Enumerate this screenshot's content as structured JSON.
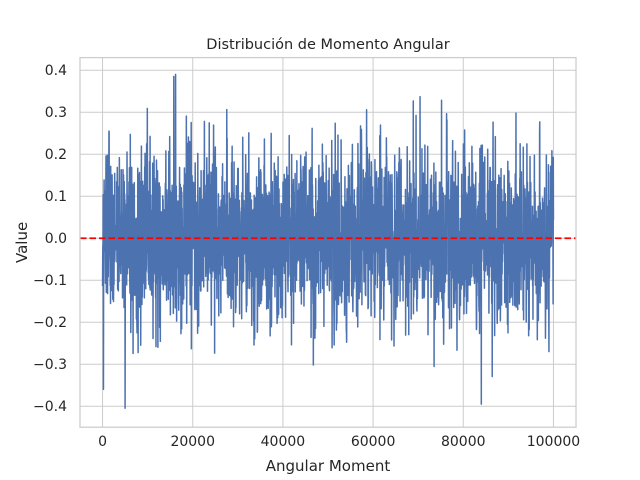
{
  "chart_data": {
    "type": "line",
    "title": "Distribución de Momento Angular",
    "xlabel": "Angular Moment",
    "ylabel": "Value",
    "xlim": [
      -5000,
      105000
    ],
    "ylim": [
      -0.45,
      0.43
    ],
    "x_ticks": [
      0,
      20000,
      40000,
      60000,
      80000,
      100000
    ],
    "x_tick_labels": [
      "0",
      "20000",
      "40000",
      "60000",
      "80000",
      "100000"
    ],
    "y_ticks": [
      -0.4,
      -0.3,
      -0.2,
      -0.1,
      0.0,
      0.1,
      0.2,
      0.3,
      0.4
    ],
    "y_tick_labels": [
      "−0.4",
      "−0.3",
      "−0.2",
      "−0.1",
      "0.0",
      "0.1",
      "0.2",
      "0.3",
      "0.4"
    ],
    "grid": true,
    "series": [
      {
        "x_range": [
          0,
          100000
        ],
        "n_points": 100000,
        "mean": 0.0,
        "std": 0.1,
        "min": -0.405,
        "max": 0.39,
        "color": "#4c72b0"
      }
    ],
    "reference_lines": [
      {
        "orientation": "horizontal",
        "y": 0.0,
        "color": "#ff0000",
        "style": "dashed"
      }
    ],
    "notable_extremes": [
      {
        "x": 15800,
        "y": 0.385
      },
      {
        "x": 16200,
        "y": 0.39
      },
      {
        "x": 5000,
        "y": -0.405
      },
      {
        "x": 84000,
        "y": -0.395
      },
      {
        "x": 200,
        "y": -0.36
      },
      {
        "x": 99000,
        "y": -0.27
      }
    ]
  },
  "colors": {
    "background": "#ffffff",
    "grid": "#cccccc",
    "axes_edge": "#cccccc",
    "text": "#262626"
  }
}
